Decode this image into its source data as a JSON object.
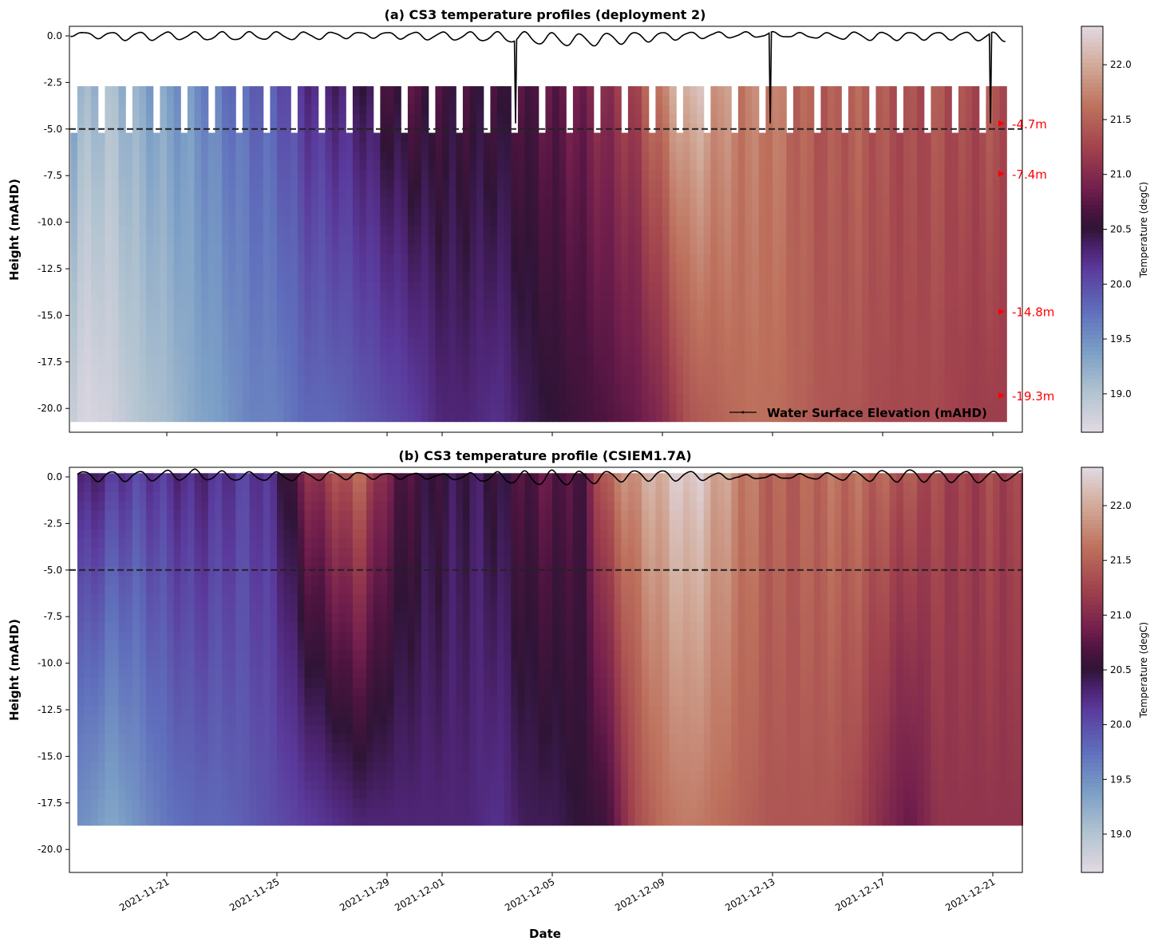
{
  "chart_data": [
    {
      "type": "heatmap",
      "title": "(a) CS3 temperature profiles (deployment 2)",
      "xlabel": "",
      "ylabel": "Height (mAHD)",
      "ylim": [
        -21.3,
        0.5
      ],
      "xlim": [
        "2021-11-17T11:00",
        "2021-12-22T02:00"
      ],
      "yticks": [
        "0.0",
        "-2.5",
        "-5.0",
        "-7.5",
        "-10.0",
        "-12.5",
        "-15.0",
        "-17.5",
        "-20.0"
      ],
      "xticks": [
        "2021-11-21",
        "2021-11-25",
        "2021-11-29",
        "2021-12-01",
        "2021-12-05",
        "2021-12-09",
        "2021-12-13",
        "2021-12-17",
        "2021-12-21"
      ],
      "colormap": "twilight",
      "colorbar": {
        "label": "Temperature (degC)",
        "range": [
          18.65,
          22.35
        ],
        "ticks": [
          "19.0",
          "19.5",
          "20.0",
          "20.5",
          "21.0",
          "21.5",
          "22.0"
        ]
      },
      "grid": false,
      "profile_top": -2.7,
      "profile_bottom": -20.7,
      "top_sensor_missing_hours_daily": [
        14,
        21
      ],
      "dates": [
        "2021-11-17T12:00",
        "2021-11-18",
        "2021-11-19",
        "2021-11-20",
        "2021-11-21",
        "2021-11-22",
        "2021-11-23",
        "2021-11-24",
        "2021-11-25",
        "2021-11-26",
        "2021-11-27",
        "2021-11-28",
        "2021-11-29",
        "2021-11-30",
        "2021-12-01",
        "2021-12-02",
        "2021-12-03",
        "2021-12-04",
        "2021-12-05",
        "2021-12-06",
        "2021-12-07",
        "2021-12-08",
        "2021-12-09",
        "2021-12-10",
        "2021-12-11",
        "2021-12-12",
        "2021-12-13",
        "2021-12-14",
        "2021-12-15",
        "2021-12-16",
        "2021-12-17",
        "2021-12-18",
        "2021-12-19",
        "2021-12-20",
        "2021-12-21",
        "2021-12-21T12:00"
      ],
      "temp_upper": [
        19.4,
        19.2,
        19.1,
        19.3,
        19.4,
        19.5,
        19.7,
        19.8,
        19.9,
        20.2,
        20.3,
        20.4,
        20.6,
        20.7,
        20.6,
        20.6,
        20.6,
        20.7,
        20.8,
        20.9,
        21.1,
        21.3,
        21.8,
        22.2,
        21.9,
        21.7,
        21.7,
        21.5,
        21.4,
        21.5,
        21.4,
        21.3,
        21.4,
        21.3,
        21.4,
        21.4
      ],
      "temp_lower": [
        18.9,
        18.7,
        18.8,
        19.0,
        19.1,
        19.3,
        19.4,
        19.6,
        19.6,
        19.8,
        19.8,
        19.9,
        20.0,
        20.1,
        20.3,
        20.3,
        20.2,
        20.4,
        20.5,
        20.6,
        20.7,
        20.8,
        21.0,
        21.4,
        21.5,
        21.6,
        21.6,
        21.5,
        21.4,
        21.4,
        21.3,
        21.3,
        21.3,
        21.2,
        21.2,
        21.2
      ],
      "water_surface": {
        "name": "Water Surface Elevation (mAHD)",
        "daily_min": [
          0.0,
          -0.05,
          -0.2,
          -0.25,
          -0.2,
          -0.2,
          -0.25,
          -0.2,
          -0.2,
          -0.2,
          -0.15,
          -0.1,
          -0.1,
          -0.2,
          -0.2,
          -0.25,
          -0.3,
          -0.4,
          -0.5,
          -0.55,
          -0.5,
          -0.35,
          -0.25,
          -0.15,
          -0.1,
          -0.1,
          -0.05,
          -0.1,
          -0.15,
          -0.2,
          -0.25,
          -0.2,
          -0.2,
          -0.2,
          -0.3,
          -0.3
        ],
        "daily_max": [
          0.2,
          0.2,
          0.2,
          0.2,
          0.2,
          0.2,
          0.2,
          0.2,
          0.2,
          0.2,
          0.2,
          0.2,
          0.2,
          0.2,
          0.2,
          0.2,
          0.2,
          0.2,
          0.15,
          0.1,
          0.15,
          0.2,
          0.2,
          0.2,
          0.2,
          0.2,
          0.2,
          0.15,
          0.15,
          0.2,
          0.2,
          0.2,
          0.2,
          0.2,
          0.2,
          0.0
        ],
        "spikes": [
          {
            "date": "2021-12-03T16:00",
            "value": -4.7
          },
          {
            "date": "2021-12-12T22:00",
            "value": -4.7
          },
          {
            "date": "2021-12-20T22:00",
            "value": -4.7
          }
        ]
      },
      "reference_line": -5.0,
      "sensor_labels": [
        {
          "value": -4.7,
          "label": "-4.7m"
        },
        {
          "value": -7.4,
          "label": "-7.4m"
        },
        {
          "value": -14.8,
          "label": "-14.8m"
        },
        {
          "value": -19.3,
          "label": "-19.3m"
        }
      ],
      "legend": {
        "placement": "lower-right",
        "entries": [
          "Water Surface Elevation (mAHD)"
        ]
      }
    },
    {
      "type": "heatmap",
      "title": "(b) CS3 temperature profile (CSIEM1.7A)",
      "xlabel": "Date",
      "ylabel": "Height (mAHD)",
      "ylim": [
        -21.3,
        0.5
      ],
      "xlim": [
        "2021-11-17T11:00",
        "2021-12-22T02:00"
      ],
      "yticks": [
        "0.0",
        "-2.5",
        "-5.0",
        "-7.5",
        "-10.0",
        "-12.5",
        "-15.0",
        "-17.5",
        "-20.0"
      ],
      "xticks": [
        "2021-11-21",
        "2021-11-25",
        "2021-11-29",
        "2021-12-01",
        "2021-12-05",
        "2021-12-09",
        "2021-12-13",
        "2021-12-17",
        "2021-12-21"
      ],
      "colormap": "twilight",
      "colorbar": {
        "label": "Temperature (degC)",
        "range": [
          18.65,
          22.35
        ],
        "ticks": [
          "19.0",
          "19.5",
          "20.0",
          "20.5",
          "21.0",
          "21.5",
          "22.0"
        ]
      },
      "grid": false,
      "profile_bottom": -18.7,
      "dates": [
        "2021-11-17T18:00",
        "2021-11-18",
        "2021-11-19",
        "2021-11-20",
        "2021-11-21",
        "2021-11-22",
        "2021-11-23",
        "2021-11-24",
        "2021-11-25",
        "2021-11-26",
        "2021-11-27",
        "2021-11-28",
        "2021-11-29",
        "2021-11-30",
        "2021-12-01",
        "2021-12-02",
        "2021-12-03",
        "2021-12-04",
        "2021-12-05",
        "2021-12-06",
        "2021-12-07",
        "2021-12-08",
        "2021-12-09",
        "2021-12-10",
        "2021-12-11",
        "2021-12-12",
        "2021-12-13",
        "2021-12-14",
        "2021-12-15",
        "2021-12-16",
        "2021-12-17",
        "2021-12-18",
        "2021-12-19",
        "2021-12-20",
        "2021-12-21",
        "2021-12-22T02:00"
      ],
      "temp_upper": [
        20.4,
        20.4,
        20.2,
        20.1,
        20.2,
        20.3,
        20.2,
        20.1,
        20.3,
        21.0,
        21.3,
        21.6,
        20.9,
        20.6,
        20.5,
        20.4,
        20.5,
        20.7,
        20.8,
        20.6,
        21.6,
        21.9,
        22.1,
        22.3,
        22.0,
        21.7,
        21.5,
        21.5,
        21.6,
        21.6,
        21.5,
        21.4,
        21.3,
        21.2,
        21.3,
        21.2
      ],
      "temp_lower": [
        19.5,
        19.5,
        19.3,
        19.5,
        19.7,
        19.8,
        19.8,
        19.9,
        20.0,
        20.1,
        20.2,
        20.3,
        20.3,
        20.3,
        20.3,
        20.3,
        20.2,
        20.4,
        20.4,
        20.5,
        20.6,
        21.3,
        21.6,
        21.7,
        21.6,
        21.5,
        21.4,
        21.4,
        21.4,
        21.3,
        21.0,
        20.8,
        21.1,
        21.1,
        21.1,
        21.1
      ],
      "water_surface": {
        "daily_min": [
          -0.1,
          -0.2,
          -0.25,
          -0.2,
          -0.2,
          -0.15,
          -0.2,
          -0.2,
          -0.2,
          -0.2,
          -0.15,
          -0.1,
          -0.1,
          -0.1,
          -0.1,
          -0.2,
          -0.3,
          -0.4,
          -0.45,
          -0.4,
          -0.3,
          -0.2,
          -0.2,
          -0.2,
          -0.15,
          -0.1,
          -0.1,
          -0.1,
          -0.15,
          -0.2,
          -0.25,
          -0.25,
          -0.25,
          -0.3,
          -0.3,
          -0.1
        ],
        "daily_max": [
          0.3,
          0.3,
          0.3,
          0.3,
          0.35,
          0.4,
          0.3,
          0.25,
          0.25,
          0.25,
          0.3,
          0.25,
          0.2,
          0.2,
          0.15,
          0.2,
          0.25,
          0.3,
          0.35,
          0.3,
          0.3,
          0.35,
          0.35,
          0.3,
          0.2,
          0.1,
          0.1,
          0.15,
          0.2,
          0.3,
          0.35,
          0.4,
          0.35,
          0.3,
          0.3,
          0.3
        ]
      },
      "reference_line": -5.0
    }
  ]
}
